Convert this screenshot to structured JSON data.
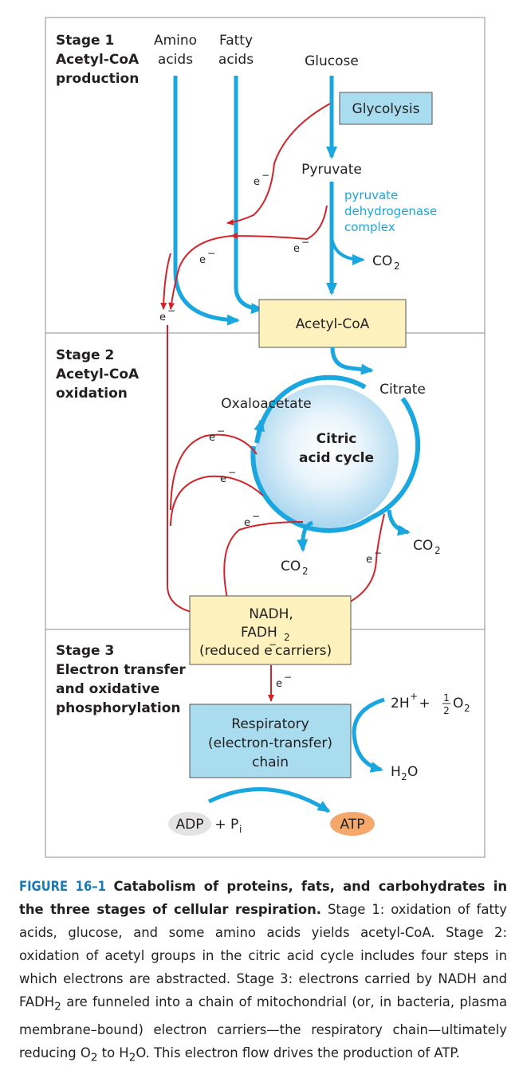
{
  "stages": {
    "s1_line1": "Stage 1",
    "s1_line2": "Acetyl-CoA",
    "s1_line3": "production",
    "s2_line1": "Stage 2",
    "s2_line2": "Acetyl-CoA",
    "s2_line3": "oxidation",
    "s3_line1": "Stage 3",
    "s3_line2": "Electron transfer",
    "s3_line3": "and oxidative",
    "s3_line4": "phosphorylation"
  },
  "inputs": {
    "amino_1": "Amino",
    "amino_2": "acids",
    "fatty_1": "Fatty",
    "fatty_2": "acids",
    "glucose": "Glucose"
  },
  "labels": {
    "glycolysis": "Glycolysis",
    "pyruvate": "Pyruvate",
    "pdh_1": "pyruvate",
    "pdh_2": "dehydrogenase",
    "pdh_3": "complex",
    "co2": "CO",
    "two": "2",
    "acetyl_coa": "Acetyl-CoA",
    "citrate": "Citrate",
    "oxaloacetate": "Oxaloacetate",
    "cycle_1": "Citric",
    "cycle_2": "acid cycle",
    "electron": "e",
    "minus": "−",
    "nadh_1": "NADH,",
    "fadh_pre": "FADH",
    "reduced_pre": "(reduced e",
    "reduced_post": " carriers)",
    "resp_1": "Respiratory",
    "resp_2": "(electron-transfer)",
    "resp_3": "chain",
    "h_pre": "2H",
    "plus_sup": "+",
    "plus": " + ",
    "half_num": "1",
    "half_den": "2",
    "o": "O",
    "h2o_h": "H",
    "h2o_o": "O",
    "adp": "ADP",
    "pi_p": "P",
    "pi_i": "i",
    "atp": "ATP"
  },
  "colors": {
    "blue": "#1aa7df",
    "red": "#d2232a",
    "yellow": "#fdf1bd",
    "light_blue": "#a9dcee",
    "atp_orange": "#f5a86c",
    "adp_gray": "#e3e3e3"
  },
  "caption": {
    "figure": "FIGURE 16–1",
    "title": "Catabolism of proteins, fats, and carbohydrates in the three stages of cellular respiration.",
    "body1": " Stage 1: oxidation of fatty acids, glucose, and some amino acids yields acetyl-CoA. Stage 2: oxidation of acetyl groups in the citric acid cycle includes four steps in which electrons are abstracted. Stage 3: electrons carried by NADH and FADH",
    "body1_sub": "2",
    "body2": " are funneled into a chain of mitochondrial (or, in bacteria, plasma membrane–bound) electron carriers—the respiratory chain—ultimately reducing O",
    "body2_sub": "2",
    "body3": " to H",
    "body3_sub": "2",
    "body4": "O. This electron flow drives the production of ATP."
  }
}
